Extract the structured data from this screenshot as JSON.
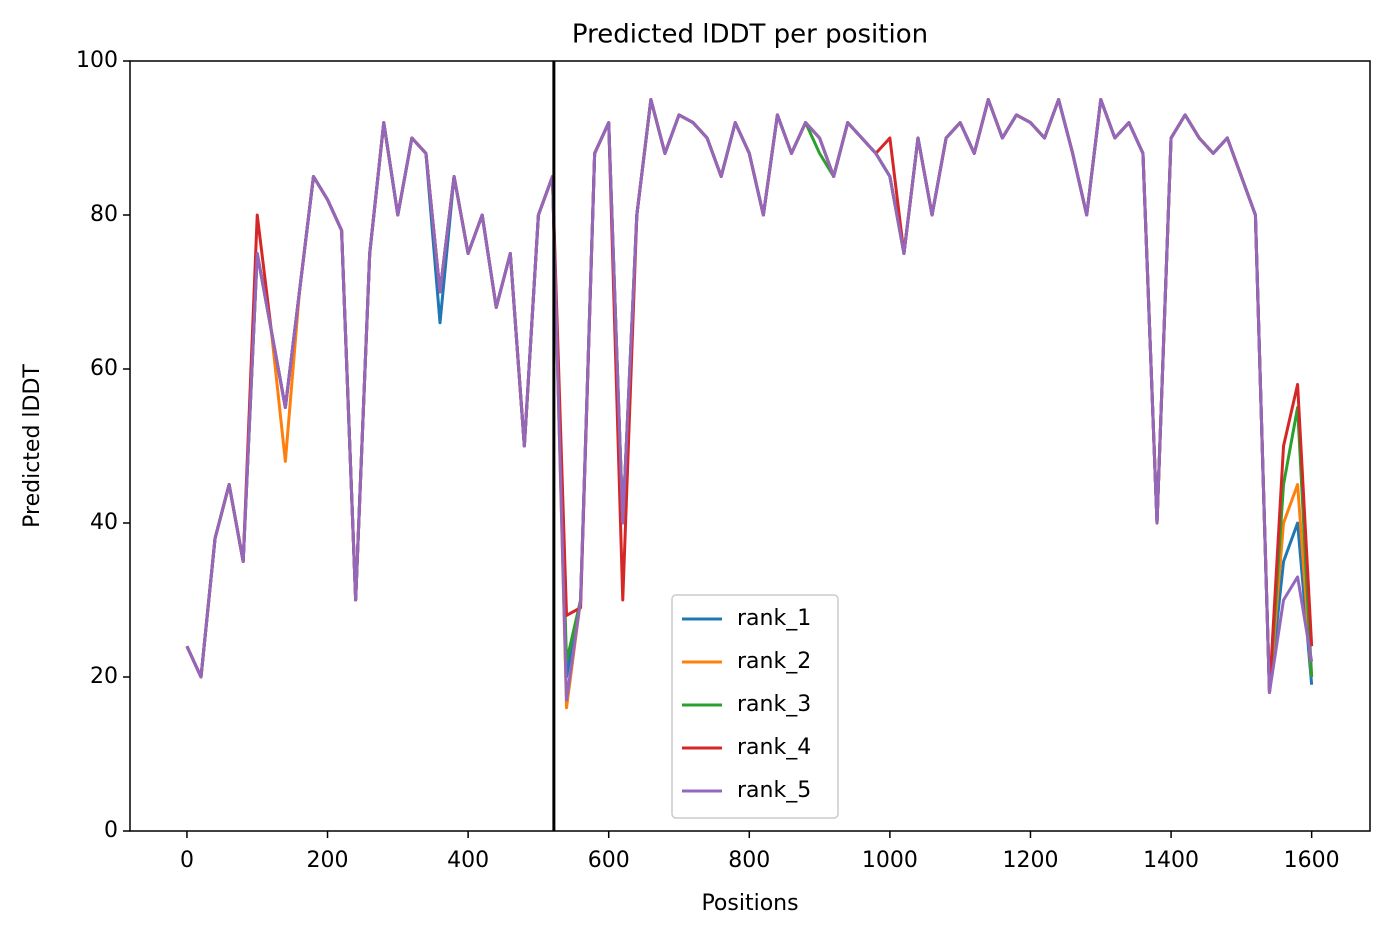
{
  "chart_data": {
    "type": "line",
    "title": "Predicted lDDT per position",
    "xlabel": "Positions",
    "ylabel": "Predicted lDDT",
    "x": [
      0,
      20,
      40,
      60,
      80,
      100,
      120,
      140,
      160,
      180,
      200,
      220,
      240,
      260,
      280,
      300,
      320,
      340,
      360,
      380,
      400,
      420,
      440,
      460,
      480,
      500,
      520,
      540,
      560,
      580,
      600,
      620,
      640,
      660,
      680,
      700,
      720,
      740,
      760,
      780,
      800,
      820,
      840,
      860,
      880,
      900,
      920,
      940,
      960,
      980,
      1000,
      1020,
      1040,
      1060,
      1080,
      1100,
      1120,
      1140,
      1160,
      1180,
      1200,
      1220,
      1240,
      1260,
      1280,
      1300,
      1320,
      1340,
      1360,
      1380,
      1400,
      1420,
      1440,
      1460,
      1480,
      1500,
      1520,
      1540,
      1560,
      1580,
      1600
    ],
    "series": [
      {
        "name": "rank_1",
        "color": "#1f77b4",
        "values": [
          24,
          20,
          38,
          45,
          35,
          75,
          65,
          55,
          70,
          85,
          82,
          78,
          30,
          75,
          92,
          80,
          90,
          88,
          66,
          85,
          75,
          80,
          68,
          75,
          50,
          80,
          85,
          20,
          30,
          88,
          92,
          40,
          80,
          95,
          88,
          93,
          92,
          90,
          85,
          92,
          88,
          80,
          93,
          88,
          92,
          90,
          85,
          92,
          90,
          88,
          85,
          75,
          90,
          80,
          90,
          92,
          88,
          95,
          90,
          93,
          92,
          90,
          95,
          88,
          80,
          95,
          90,
          92,
          88,
          40,
          90,
          93,
          90,
          88,
          90,
          85,
          80,
          18,
          35,
          40,
          19
        ]
      },
      {
        "name": "rank_2",
        "color": "#ff7f0e",
        "values": [
          24,
          20,
          38,
          45,
          35,
          75,
          65,
          48,
          70,
          85,
          82,
          78,
          30,
          75,
          92,
          80,
          90,
          88,
          70,
          85,
          75,
          80,
          68,
          75,
          50,
          80,
          85,
          16,
          30,
          88,
          92,
          40,
          80,
          95,
          88,
          93,
          92,
          90,
          85,
          92,
          88,
          80,
          93,
          88,
          92,
          90,
          85,
          92,
          90,
          88,
          85,
          75,
          90,
          80,
          90,
          92,
          88,
          95,
          90,
          93,
          92,
          90,
          95,
          88,
          80,
          95,
          90,
          92,
          88,
          40,
          90,
          93,
          90,
          88,
          90,
          85,
          80,
          18,
          40,
          45,
          20
        ]
      },
      {
        "name": "rank_3",
        "color": "#2ca02c",
        "values": [
          24,
          20,
          38,
          45,
          35,
          75,
          65,
          55,
          70,
          85,
          82,
          78,
          30,
          75,
          92,
          80,
          90,
          88,
          70,
          85,
          75,
          80,
          68,
          75,
          50,
          80,
          85,
          22,
          30,
          88,
          92,
          40,
          80,
          95,
          88,
          93,
          92,
          90,
          85,
          92,
          88,
          80,
          93,
          88,
          92,
          88,
          85,
          92,
          90,
          88,
          85,
          75,
          90,
          80,
          90,
          92,
          88,
          95,
          90,
          93,
          92,
          90,
          95,
          88,
          80,
          95,
          90,
          92,
          88,
          40,
          90,
          93,
          90,
          88,
          90,
          85,
          80,
          18,
          45,
          55,
          20
        ]
      },
      {
        "name": "rank_4",
        "color": "#d62728",
        "values": [
          24,
          20,
          38,
          45,
          35,
          80,
          65,
          55,
          70,
          85,
          82,
          78,
          30,
          75,
          92,
          80,
          90,
          88,
          70,
          85,
          75,
          80,
          68,
          75,
          50,
          80,
          85,
          28,
          29,
          88,
          92,
          30,
          80,
          95,
          88,
          93,
          92,
          90,
          85,
          92,
          88,
          80,
          93,
          88,
          92,
          90,
          85,
          92,
          90,
          88,
          90,
          75,
          90,
          80,
          90,
          92,
          88,
          95,
          90,
          93,
          92,
          90,
          95,
          88,
          80,
          95,
          90,
          92,
          88,
          40,
          90,
          93,
          90,
          88,
          90,
          85,
          80,
          18,
          50,
          58,
          24
        ]
      },
      {
        "name": "rank_5",
        "color": "#9467bd",
        "values": [
          24,
          20,
          38,
          45,
          35,
          75,
          65,
          55,
          70,
          85,
          82,
          78,
          30,
          75,
          92,
          80,
          90,
          88,
          70,
          85,
          75,
          80,
          68,
          75,
          50,
          80,
          85,
          17,
          30,
          88,
          92,
          40,
          80,
          95,
          88,
          93,
          92,
          90,
          85,
          92,
          88,
          80,
          93,
          88,
          92,
          90,
          85,
          92,
          90,
          88,
          85,
          75,
          90,
          80,
          90,
          92,
          88,
          95,
          90,
          93,
          92,
          90,
          95,
          88,
          80,
          95,
          90,
          92,
          88,
          40,
          90,
          93,
          90,
          88,
          90,
          85,
          80,
          18,
          30,
          33,
          22
        ]
      }
    ],
    "vline": 522,
    "vline_color": "#000000",
    "xlim": [
      -81,
      1683
    ],
    "ylim": [
      0,
      100
    ],
    "xticks": [
      0,
      200,
      400,
      600,
      800,
      1000,
      1200,
      1400,
      1600
    ],
    "yticks": [
      0,
      20,
      40,
      60,
      80,
      100
    ],
    "legend": "lower center"
  }
}
